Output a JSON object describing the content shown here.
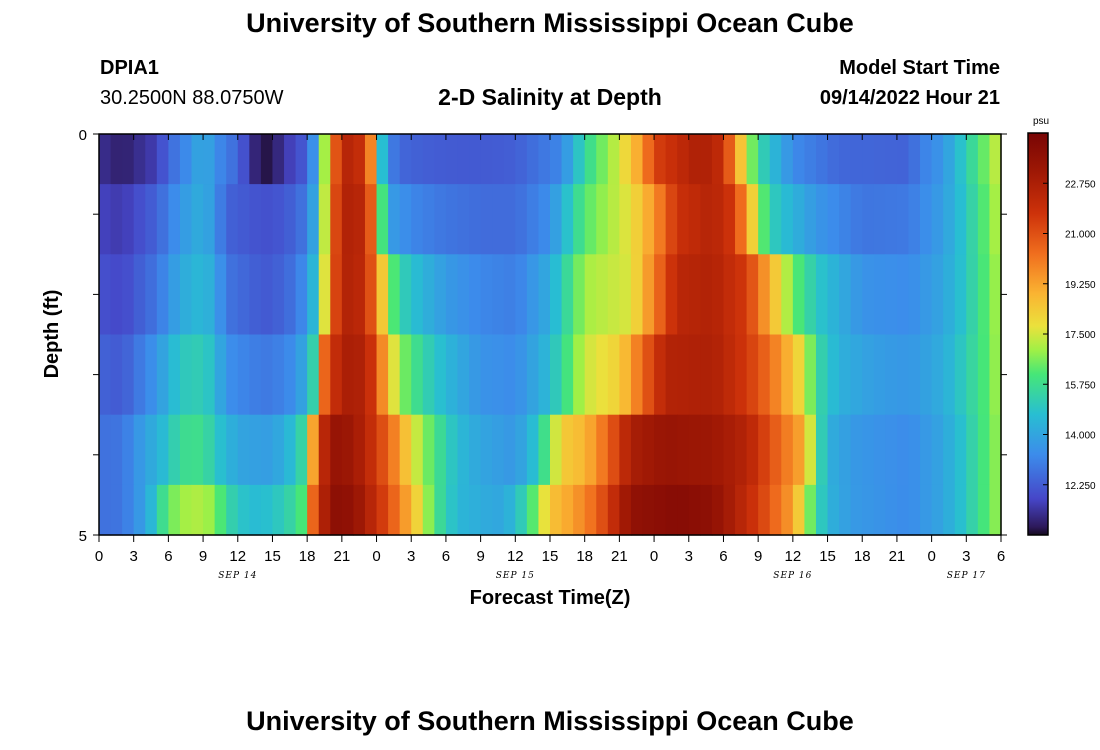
{
  "header": {
    "title": "University of Southern Mississippi Ocean Cube",
    "station_id": "DPIA1",
    "station_coords": "30.2500N  88.0750W",
    "plot_title": "2-D Salinity at Depth",
    "model_start_label": "Model Start Time",
    "model_start_value": "09/14/2022 Hour 21"
  },
  "footer": {
    "title": "University of Southern Mississippi Ocean Cube"
  },
  "chart_data": {
    "type": "heatmap",
    "title": "2-D Salinity at Depth",
    "xlabel": "Forecast Time(Z)",
    "ylabel": "Depth (ft)",
    "x_tick_labels": [
      "0",
      "3",
      "6",
      "9",
      "12",
      "15",
      "18",
      "21",
      "0",
      "3",
      "6",
      "9",
      "12",
      "15",
      "18",
      "21",
      "0",
      "3",
      "6",
      "9",
      "12",
      "15",
      "18",
      "21",
      "0",
      "3",
      "6"
    ],
    "x_range_hours": [
      0,
      78
    ],
    "day_labels": [
      {
        "label": "SEP 14",
        "hour": 12
      },
      {
        "label": "SEP 15",
        "hour": 36
      },
      {
        "label": "SEP 16",
        "hour": 60
      },
      {
        "label": "SEP 17",
        "hour": 75
      }
    ],
    "y_range_ft": [
      0,
      5
    ],
    "y_tick_labels": [
      {
        "value": 0,
        "label": "0"
      },
      {
        "value": 5,
        "label": "5"
      }
    ],
    "colorbar": {
      "units": "psu",
      "min": 10.5,
      "max": 24.5,
      "tick_labels": [
        "12.250",
        "14.000",
        "15.750",
        "17.500",
        "19.250",
        "21.000",
        "22.750"
      ],
      "tick_values": [
        12.25,
        14.0,
        15.75,
        17.5,
        19.25,
        21.0,
        22.75
      ]
    },
    "depth_levels_ft": [
      0.25,
      1.0,
      2.0,
      3.0,
      4.0,
      4.75
    ],
    "profiles": [
      {
        "depth_ft": 0.25,
        "points": [
          [
            0,
            11.3
          ],
          [
            2,
            10.9
          ],
          [
            5,
            11.6
          ],
          [
            6,
            12.5
          ],
          [
            8,
            13.5
          ],
          [
            9,
            14.3
          ],
          [
            10,
            13.4
          ],
          [
            12,
            12.5
          ],
          [
            13,
            11.5
          ],
          [
            14,
            10.6
          ],
          [
            15,
            10.8
          ],
          [
            16,
            11.4
          ],
          [
            18,
            12.3
          ],
          [
            19,
            14.5
          ],
          [
            20,
            19.5
          ],
          [
            21,
            22.3
          ],
          [
            22,
            22.5
          ],
          [
            23,
            21.5
          ],
          [
            23.7,
            19.2
          ],
          [
            24,
            16.2
          ],
          [
            25,
            13.2
          ],
          [
            26,
            12.5
          ],
          [
            28,
            12.3
          ],
          [
            31,
            12.2
          ],
          [
            33,
            12.2
          ],
          [
            36,
            12.3
          ],
          [
            40,
            13.2
          ],
          [
            42,
            15.5
          ],
          [
            45,
            17.5
          ],
          [
            47,
            19.5
          ],
          [
            48,
            21.3
          ],
          [
            52,
            22.8
          ],
          [
            54,
            22.0
          ],
          [
            55,
            19.5
          ],
          [
            57,
            15.5
          ],
          [
            60,
            13.3
          ],
          [
            64,
            12.5
          ],
          [
            70,
            12.4
          ],
          [
            71,
            13.0
          ],
          [
            73,
            13.6
          ],
          [
            75,
            15.2
          ],
          [
            77,
            16.8
          ],
          [
            78,
            17.6
          ]
        ]
      },
      {
        "depth_ft": 1.0,
        "points": [
          [
            0,
            11.7
          ],
          [
            2,
            11.5
          ],
          [
            5,
            12.4
          ],
          [
            7,
            13.6
          ],
          [
            9,
            14.3
          ],
          [
            10,
            13.5
          ],
          [
            11,
            12.4
          ],
          [
            14,
            12.0
          ],
          [
            15,
            12.0
          ],
          [
            17,
            12.4
          ],
          [
            18,
            13.0
          ],
          [
            19,
            14.8
          ],
          [
            20,
            19.8
          ],
          [
            21,
            22.6
          ],
          [
            23,
            22.3
          ],
          [
            24,
            19.2
          ],
          [
            24.5,
            16.0
          ],
          [
            25,
            13.8
          ],
          [
            27,
            13.2
          ],
          [
            30,
            12.8
          ],
          [
            33,
            12.6
          ],
          [
            36,
            12.6
          ],
          [
            39,
            13.4
          ],
          [
            42,
            16.2
          ],
          [
            44,
            17.0
          ],
          [
            46,
            17.8
          ],
          [
            48,
            19.5
          ],
          [
            50,
            21.8
          ],
          [
            53,
            22.5
          ],
          [
            55,
            21.5
          ],
          [
            56,
            19.2
          ],
          [
            58,
            15.2
          ],
          [
            62,
            13.6
          ],
          [
            66,
            12.8
          ],
          [
            70,
            12.9
          ],
          [
            73,
            13.8
          ],
          [
            75,
            15.0
          ],
          [
            77,
            16.6
          ],
          [
            78,
            17.4
          ]
        ]
      },
      {
        "depth_ft": 2.0,
        "points": [
          [
            0,
            12.0
          ],
          [
            2,
            11.8
          ],
          [
            5,
            12.8
          ],
          [
            7,
            14.1
          ],
          [
            9,
            14.6
          ],
          [
            10,
            14.0
          ],
          [
            11,
            12.8
          ],
          [
            14,
            12.2
          ],
          [
            15,
            12.2
          ],
          [
            17,
            12.8
          ],
          [
            18,
            13.6
          ],
          [
            19,
            15.3
          ],
          [
            20,
            20.0
          ],
          [
            21,
            22.6
          ],
          [
            23,
            22.2
          ],
          [
            24,
            19.8
          ],
          [
            25,
            17.0
          ],
          [
            26,
            15.3
          ],
          [
            28,
            14.4
          ],
          [
            30,
            13.7
          ],
          [
            33,
            13.2
          ],
          [
            36,
            13.0
          ],
          [
            39,
            14.2
          ],
          [
            42,
            17.0
          ],
          [
            46,
            17.6
          ],
          [
            48,
            20.0
          ],
          [
            50,
            22.3
          ],
          [
            53,
            22.6
          ],
          [
            56,
            21.5
          ],
          [
            58,
            19.0
          ],
          [
            60,
            16.5
          ],
          [
            62,
            15.0
          ],
          [
            64,
            14.2
          ],
          [
            66,
            13.5
          ],
          [
            70,
            13.3
          ],
          [
            73,
            14.0
          ],
          [
            75,
            15.0
          ],
          [
            77,
            16.5
          ],
          [
            78,
            17.2
          ]
        ]
      },
      {
        "depth_ft": 3.0,
        "points": [
          [
            0,
            12.4
          ],
          [
            2,
            12.2
          ],
          [
            5,
            13.6
          ],
          [
            7,
            15.0
          ],
          [
            9,
            15.2
          ],
          [
            10,
            14.6
          ],
          [
            11,
            13.4
          ],
          [
            14,
            12.9
          ],
          [
            15,
            12.9
          ],
          [
            17,
            13.4
          ],
          [
            18,
            14.4
          ],
          [
            19,
            16.2
          ],
          [
            19.5,
            20.5
          ],
          [
            21,
            22.8
          ],
          [
            23,
            22.6
          ],
          [
            24,
            21.0
          ],
          [
            25,
            18.5
          ],
          [
            26,
            16.8
          ],
          [
            28,
            15.4
          ],
          [
            30,
            14.5
          ],
          [
            33,
            13.5
          ],
          [
            36,
            13.3
          ],
          [
            39,
            14.6
          ],
          [
            42,
            17.4
          ],
          [
            45,
            18.2
          ],
          [
            47,
            20.5
          ],
          [
            49,
            22.5
          ],
          [
            53,
            22.7
          ],
          [
            55,
            22.0
          ],
          [
            57,
            21.0
          ],
          [
            59,
            19.5
          ],
          [
            61,
            17.6
          ],
          [
            62,
            15.6
          ],
          [
            64,
            14.3
          ],
          [
            67,
            13.8
          ],
          [
            70,
            13.6
          ],
          [
            73,
            14.2
          ],
          [
            75,
            15.2
          ],
          [
            77,
            16.4
          ],
          [
            78,
            17.2
          ]
        ]
      },
      {
        "depth_ft": 4.0,
        "points": [
          [
            0,
            12.7
          ],
          [
            2,
            12.8
          ],
          [
            4,
            13.9
          ],
          [
            6,
            14.8
          ],
          [
            7,
            15.7
          ],
          [
            9,
            15.8
          ],
          [
            10,
            15.0
          ],
          [
            12,
            14.0
          ],
          [
            14,
            13.8
          ],
          [
            15,
            13.8
          ],
          [
            17,
            14.8
          ],
          [
            18,
            16.0
          ],
          [
            18.7,
            20.5
          ],
          [
            20,
            23.5
          ],
          [
            22,
            23.2
          ],
          [
            24,
            21.6
          ],
          [
            26,
            19.4
          ],
          [
            27,
            17.8
          ],
          [
            29,
            16.0
          ],
          [
            31,
            14.6
          ],
          [
            33,
            14.0
          ],
          [
            36,
            13.6
          ],
          [
            38,
            15.0
          ],
          [
            40,
            18.3
          ],
          [
            42,
            18.8
          ],
          [
            44,
            20.5
          ],
          [
            46,
            22.8
          ],
          [
            49,
            23.4
          ],
          [
            53,
            23.2
          ],
          [
            56,
            22.5
          ],
          [
            58,
            21.0
          ],
          [
            61,
            19.0
          ],
          [
            62,
            16.0
          ],
          [
            63,
            14.3
          ],
          [
            65,
            13.7
          ],
          [
            67,
            13.5
          ],
          [
            70,
            13.3
          ],
          [
            73,
            14.0
          ],
          [
            75,
            15.0
          ],
          [
            77,
            16.4
          ],
          [
            78,
            17.0
          ]
        ]
      },
      {
        "depth_ft": 4.75,
        "points": [
          [
            0,
            12.7
          ],
          [
            2,
            12.8
          ],
          [
            4,
            13.9
          ],
          [
            5,
            15.1
          ],
          [
            6,
            16.4
          ],
          [
            8,
            17.2
          ],
          [
            10,
            16.8
          ],
          [
            11,
            15.5
          ],
          [
            13,
            14.6
          ],
          [
            15,
            14.8
          ],
          [
            17,
            15.6
          ],
          [
            18,
            16.6
          ],
          [
            18.5,
            20.5
          ],
          [
            20,
            23.8
          ],
          [
            22,
            23.6
          ],
          [
            24,
            22.0
          ],
          [
            26,
            20.0
          ],
          [
            28,
            17.5
          ],
          [
            29,
            16.0
          ],
          [
            31,
            14.5
          ],
          [
            33,
            14.2
          ],
          [
            35,
            14.0
          ],
          [
            37,
            15.5
          ],
          [
            39,
            18.5
          ],
          [
            41,
            19.3
          ],
          [
            43,
            20.5
          ],
          [
            46,
            23.6
          ],
          [
            50,
            24.0
          ],
          [
            53,
            23.7
          ],
          [
            55,
            22.7
          ],
          [
            57,
            21.5
          ],
          [
            60,
            19.3
          ],
          [
            61,
            17.4
          ],
          [
            62,
            15.6
          ],
          [
            63,
            14.4
          ],
          [
            65,
            13.7
          ],
          [
            70,
            13.3
          ],
          [
            73,
            14.0
          ],
          [
            75,
            15.0
          ],
          [
            77,
            16.4
          ],
          [
            78,
            17.0
          ]
        ]
      }
    ]
  }
}
